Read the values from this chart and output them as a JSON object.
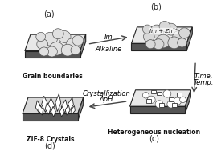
{
  "bg_color": "#ffffff",
  "panel_bg": "#f0f0f0",
  "slab_top": "#e8e8e8",
  "slab_side": "#888888",
  "slab_bottom": "#666666",
  "outline_color": "#222222",
  "arrow_color": "#444444",
  "labels": {
    "a": "(a)",
    "b": "(b)",
    "c": "(c)",
    "d": "(d)"
  },
  "captions": {
    "a": "Grain boundaries",
    "b": "",
    "c": "Heterogeneous nucleation",
    "d": "ZIF-8 Crystals"
  },
  "arrow_labels": {
    "top": [
      "Im",
      "Alkaline"
    ],
    "right": [
      "Time,",
      "Temp."
    ],
    "bottom": [
      "Crystallization",
      "ΔpH"
    ]
  },
  "panel_b_text": "Im + Zn²⁺",
  "figsize": [
    2.7,
    1.89
  ],
  "dpi": 100
}
